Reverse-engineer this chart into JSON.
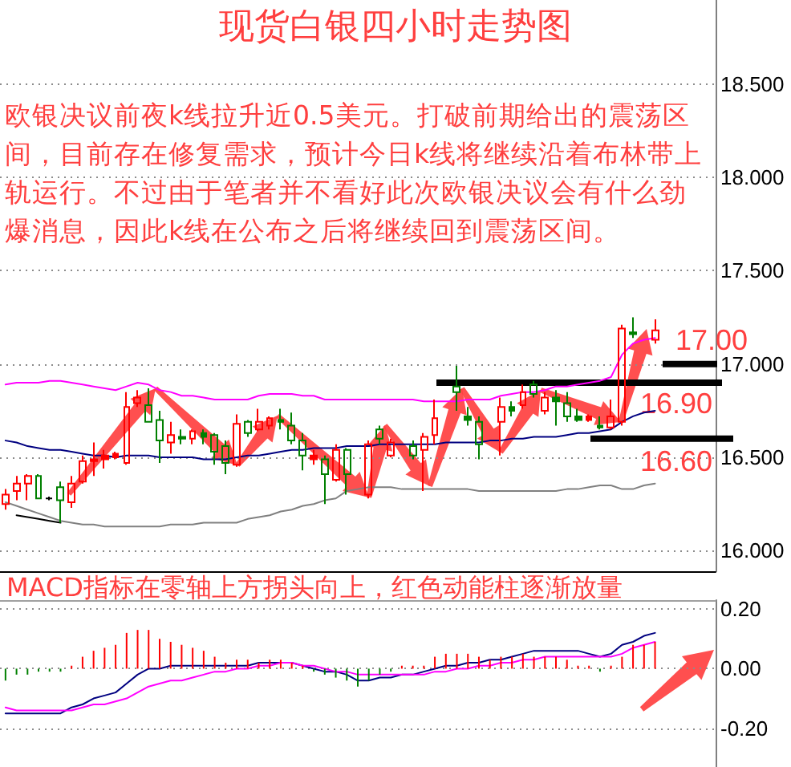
{
  "chart_data": [
    {
      "type": "candlestick",
      "title": "现货白银四小时走势图",
      "annotations": [
        "欧银决议前夜k线拉升近0.5美元。打破前期给出的震荡区间，目前存在修复需求，预计今日k线将继续沿着布林带上轨运行。不过由于笔者并不看好此次欧银决议会有什么劲爆消息，因此k线在公布之后将继续回到震荡区间。"
      ],
      "categories": [
        null,
        null,
        null,
        null,
        null,
        null,
        null,
        null,
        null,
        null,
        null,
        null,
        null,
        null,
        null,
        null,
        null,
        null,
        null,
        null,
        null,
        null,
        null,
        null,
        null,
        null,
        null,
        null,
        null,
        null,
        null,
        null,
        null,
        null,
        null,
        null,
        null,
        null,
        null,
        null,
        null,
        null,
        null,
        null,
        null,
        null,
        null,
        null,
        null,
        null,
        null,
        null,
        null,
        null,
        null,
        null,
        null,
        null,
        null,
        null
      ],
      "ohlc": [
        [
          16.25,
          16.33,
          16.22,
          16.3
        ],
        [
          16.32,
          16.4,
          16.27,
          16.36
        ],
        [
          16.36,
          16.41,
          16.27,
          16.4
        ],
        [
          16.4,
          16.41,
          16.28,
          16.28
        ],
        [
          16.28,
          16.29,
          16.27,
          16.28
        ],
        [
          16.34,
          16.37,
          16.15,
          16.27
        ],
        [
          16.26,
          16.4,
          16.23,
          16.36
        ],
        [
          16.37,
          16.51,
          16.36,
          16.48
        ],
        [
          16.48,
          16.58,
          16.4,
          16.49
        ],
        [
          16.49,
          16.54,
          16.44,
          16.51
        ],
        [
          16.5,
          16.53,
          16.49,
          16.52
        ],
        [
          16.47,
          16.85,
          16.46,
          16.77
        ],
        [
          16.79,
          16.86,
          16.77,
          16.82
        ],
        [
          16.78,
          16.87,
          16.69,
          16.69
        ],
        [
          16.7,
          16.75,
          16.47,
          16.59
        ],
        [
          16.58,
          16.69,
          16.52,
          16.62
        ],
        [
          16.61,
          16.65,
          16.57,
          16.6
        ],
        [
          16.6,
          16.65,
          16.57,
          16.64
        ],
        [
          16.63,
          16.65,
          16.57,
          16.61
        ],
        [
          16.62,
          16.63,
          16.46,
          16.53
        ],
        [
          16.56,
          16.59,
          16.41,
          16.47
        ],
        [
          16.46,
          16.73,
          16.45,
          16.68
        ],
        [
          16.69,
          16.7,
          16.61,
          16.63
        ],
        [
          16.65,
          16.76,
          16.64,
          16.69
        ],
        [
          16.67,
          16.72,
          16.65,
          16.71
        ],
        [
          16.7,
          16.76,
          16.65,
          16.69
        ],
        [
          16.67,
          16.74,
          16.57,
          16.59
        ],
        [
          16.59,
          16.63,
          16.43,
          16.51
        ],
        [
          16.49,
          16.54,
          16.46,
          16.51
        ],
        [
          16.49,
          16.51,
          16.25,
          16.41
        ],
        [
          16.38,
          16.57,
          16.37,
          16.54
        ],
        [
          16.54,
          16.55,
          16.3,
          16.41
        ],
        null,
        [
          16.3,
          16.59,
          16.28,
          16.57
        ],
        [
          16.65,
          16.67,
          16.57,
          16.6
        ],
        [
          16.51,
          16.6,
          16.5,
          16.58
        ],
        null,
        [
          16.56,
          16.59,
          16.49,
          16.51
        ],
        [
          16.54,
          16.63,
          16.32,
          16.61
        ],
        [
          16.62,
          16.81,
          16.57,
          16.71
        ],
        null,
        [
          16.88,
          16.99,
          16.75,
          16.85
        ],
        [
          16.72,
          16.77,
          16.67,
          16.7
        ],
        [
          16.69,
          16.72,
          16.49,
          16.57
        ],
        null,
        [
          16.69,
          16.82,
          16.51,
          16.77
        ],
        [
          16.77,
          16.8,
          16.72,
          16.75
        ],
        [
          16.78,
          16.89,
          16.76,
          16.85
        ],
        [
          16.89,
          16.91,
          16.82,
          16.84
        ],
        [
          16.75,
          16.85,
          16.73,
          16.82
        ],
        [
          16.82,
          16.86,
          16.67,
          16.8
        ],
        [
          16.79,
          16.85,
          16.69,
          16.72
        ],
        [
          16.72,
          16.76,
          16.69,
          16.7
        ],
        [
          16.7,
          16.73,
          16.69,
          16.72
        ],
        [
          16.67,
          16.72,
          16.65,
          16.66
        ],
        [
          16.66,
          16.81,
          16.65,
          16.72
        ],
        [
          16.69,
          17.21,
          16.67,
          17.19
        ],
        [
          17.17,
          17.25,
          17.14,
          17.16
        ],
        null,
        [
          17.13,
          17.24,
          17.11,
          17.18
        ]
      ],
      "colors": [
        "#ff0000",
        "#ff0000",
        "#ff0000",
        "#008000",
        "#000000",
        "#008000",
        "#ff0000",
        "#ff0000",
        "#ff0000",
        "#ff0000",
        "#ff0000",
        "#ff0000",
        "#ff0000",
        "#008000",
        "#008000",
        "#ff0000",
        "#008000",
        "#ff0000",
        "#008000",
        "#008000",
        "#008000",
        "#ff0000",
        "#008000",
        "#ff0000",
        "#ff0000",
        "#008000",
        "#008000",
        "#008000",
        "#ff0000",
        "#008000",
        "#ff0000",
        "#008000",
        null,
        "#ff0000",
        "#008000",
        "#ff0000",
        null,
        "#008000",
        "#ff0000",
        "#ff0000",
        null,
        "#008000",
        "#008000",
        "#008000",
        null,
        "#ff0000",
        "#008000",
        "#ff0000",
        "#008000",
        "#ff0000",
        "#008000",
        "#008000",
        "#008000",
        "#ff0000",
        "#008000",
        "#ff0000",
        "#ff0000",
        "#008000",
        null,
        "#ff0000"
      ],
      "series": [
        {
          "type": "line",
          "color": "#ff00ff",
          "values": [
            16.89,
            16.9,
            16.9,
            16.9,
            16.91,
            16.91,
            16.9,
            16.89,
            16.88,
            16.87,
            16.86,
            16.88,
            16.9,
            16.89,
            16.86,
            16.85,
            16.83,
            16.83,
            16.82,
            16.81,
            16.81,
            16.81,
            16.81,
            16.83,
            16.84,
            16.84,
            16.84,
            16.83,
            16.83,
            16.81,
            16.81,
            16.81,
            16.81,
            16.81,
            16.81,
            16.81,
            16.81,
            16.81,
            16.8,
            16.8,
            16.8,
            16.8,
            16.81,
            16.81,
            16.81,
            16.83,
            16.84,
            16.85,
            16.85,
            16.86,
            16.88,
            16.88,
            16.89,
            16.9,
            16.91,
            16.93,
            17.05,
            17.11,
            17.13,
            17.14
          ]
        },
        {
          "type": "line",
          "color": "#000080",
          "values": [
            16.59,
            16.58,
            16.56,
            16.55,
            16.54,
            16.54,
            16.53,
            16.52,
            16.51,
            16.51,
            16.5,
            16.51,
            16.51,
            16.51,
            16.5,
            16.5,
            16.5,
            16.5,
            16.49,
            16.49,
            16.49,
            16.5,
            16.51,
            16.51,
            16.52,
            16.53,
            16.54,
            16.54,
            16.55,
            16.55,
            16.55,
            16.56,
            16.56,
            16.56,
            16.57,
            16.57,
            16.57,
            16.57,
            16.57,
            16.57,
            16.58,
            16.58,
            16.58,
            16.58,
            16.59,
            16.59,
            16.6,
            16.6,
            16.61,
            16.61,
            16.61,
            16.62,
            16.63,
            16.63,
            16.64,
            16.65,
            16.69,
            16.72,
            16.74,
            16.75
          ]
        },
        {
          "type": "line",
          "color": "#808080",
          "values": [
            16.26,
            16.24,
            16.22,
            16.2,
            16.18,
            16.16,
            16.15,
            16.14,
            16.14,
            16.13,
            16.13,
            16.13,
            16.13,
            16.13,
            16.13,
            16.14,
            16.14,
            16.14,
            16.15,
            16.15,
            16.15,
            16.15,
            16.17,
            16.18,
            16.19,
            16.21,
            16.22,
            16.24,
            16.25,
            16.27,
            16.28,
            16.32,
            16.33,
            16.34,
            16.34,
            16.34,
            16.33,
            16.33,
            16.33,
            16.33,
            16.33,
            16.33,
            16.33,
            16.32,
            16.32,
            16.32,
            16.32,
            16.32,
            16.32,
            16.32,
            16.32,
            16.33,
            16.33,
            16.34,
            16.35,
            16.35,
            16.33,
            16.33,
            16.35,
            16.36
          ]
        },
        {
          "type": "line",
          "color": "#000000",
          "values": [
            null,
            16.19,
            16.18,
            16.17,
            16.16,
            16.15,
            null,
            null,
            null,
            null,
            null,
            null,
            null,
            null,
            null,
            null,
            null,
            null,
            null,
            null,
            null,
            null,
            null,
            null,
            null,
            null,
            null,
            null,
            null,
            null,
            null,
            null,
            null,
            null,
            null,
            null,
            null,
            null,
            null,
            null,
            null,
            null,
            null,
            null,
            null,
            null,
            null,
            null,
            null,
            null,
            null,
            null,
            null,
            null,
            null,
            null,
            null,
            null,
            null,
            null
          ]
        }
      ],
      "ylim": [
        15.89,
        18.95
      ],
      "yticks": [
        {
          "value": 16,
          "label": "16.000"
        },
        {
          "value": 16.5,
          "label": "16.500"
        },
        {
          "value": 17,
          "label": "17.000"
        },
        {
          "value": 17.5,
          "label": "17.500"
        },
        {
          "value": 18,
          "label": "18.000"
        },
        {
          "value": 18.5,
          "label": "18.500"
        }
      ],
      "ref_lines": [
        {
          "axis": "y",
          "value": 17.0,
          "label": "17.00",
          "color": "#000000"
        },
        {
          "axis": "y",
          "value": 16.9,
          "label": "16.90",
          "color": "#000000"
        },
        {
          "axis": "y",
          "value": 16.6,
          "label": "16.60",
          "color": "#000000"
        }
      ],
      "grid": "y",
      "tick_labels": "y",
      "marker": "none"
    },
    {
      "type": "bar",
      "title": "MACD指标在零轴上方拐头向上，红色动能柱逐渐放量",
      "categories": [
        null,
        null,
        null,
        null,
        null,
        null,
        null,
        null,
        null,
        null,
        null,
        null,
        null,
        null,
        null,
        null,
        null,
        null,
        null,
        null,
        null,
        null,
        null,
        null,
        null,
        null,
        null,
        null,
        null,
        null,
        null,
        null,
        null,
        null,
        null,
        null,
        null,
        null,
        null,
        null,
        null,
        null,
        null,
        null,
        null,
        null,
        null,
        null,
        null,
        null,
        null,
        null,
        null,
        null,
        null,
        null,
        null,
        null,
        null,
        null
      ],
      "series": [
        {
          "colors": [
            "#008000",
            "#008000",
            "#008000",
            "#008000",
            "#008000",
            "#008000",
            "#ff0000",
            "#ff0000",
            "#ff0000",
            "#ff0000",
            "#ff0000",
            "#ff0000",
            "#ff0000",
            "#ff0000",
            "#ff0000",
            "#ff0000",
            "#ff0000",
            "#ff0000",
            "#ff0000",
            "#ff0000",
            "#ff0000",
            "#ff0000",
            "#ff0000",
            "#ff0000",
            "#ff0000",
            "#ff0000",
            "#ff0000",
            "#ff0000",
            "#008000",
            "#008000",
            "#008000",
            "#008000",
            "#008000",
            "#008000",
            "#008000",
            "#008000",
            "#ff0000",
            "#ff0000",
            "#ff0000",
            "#ff0000",
            "#ff0000",
            "#ff0000",
            "#ff0000",
            "#ff0000",
            "#ff0000",
            "#ff0000",
            "#ff0000",
            "#ff0000",
            "#ff0000",
            "#ff0000",
            "#ff0000",
            "#ff0000",
            "#ff0000",
            "#ff0000",
            "#008000",
            "#ff0000",
            "#ff0000",
            "#ff0000",
            "#ff0000",
            "#ff0000"
          ],
          "values": [
            -0.04,
            -0.02,
            -0.02,
            -0.01,
            -0.01,
            -0.01,
            0.01,
            0.04,
            0.06,
            0.07,
            0.08,
            0.12,
            0.13,
            0.13,
            0.1,
            0.09,
            0.08,
            0.07,
            0.06,
            0.04,
            0.02,
            0.03,
            0.03,
            0.02,
            0.03,
            0.03,
            0.02,
            0.01,
            -0.01,
            -0.02,
            -0.03,
            -0.04,
            -0.06,
            -0.04,
            -0.02,
            -0.01,
            0.01,
            0.01,
            0.01,
            0.04,
            0.05,
            0.05,
            0.05,
            0.04,
            0.03,
            0.04,
            0.04,
            0.05,
            0.04,
            0.04,
            0.04,
            0.03,
            0.01,
            0.01,
            -0.01,
            0.01,
            0.04,
            0.08,
            0.08,
            0.09
          ]
        },
        {
          "type": "line",
          "color": "#000080",
          "values": [
            -0.15,
            -0.15,
            -0.15,
            -0.15,
            -0.15,
            -0.15,
            -0.13,
            -0.12,
            -0.1,
            -0.09,
            -0.08,
            -0.05,
            -0.02,
            0.0,
            0.0,
            0.01,
            0.01,
            0.01,
            0.01,
            0.01,
            0.01,
            0.01,
            0.01,
            0.02,
            0.02,
            0.02,
            0.02,
            0.01,
            0.0,
            -0.01,
            -0.01,
            -0.02,
            -0.04,
            -0.04,
            -0.03,
            -0.03,
            -0.02,
            -0.02,
            -0.01,
            0.0,
            0.01,
            0.01,
            0.02,
            0.02,
            0.03,
            0.03,
            0.04,
            0.05,
            0.06,
            0.06,
            0.06,
            0.06,
            0.06,
            0.05,
            0.04,
            0.05,
            0.08,
            0.09,
            0.11,
            0.12
          ]
        },
        {
          "type": "line",
          "color": "#ff00ff",
          "values": [
            -0.13,
            -0.14,
            -0.14,
            -0.14,
            -0.14,
            -0.14,
            -0.14,
            -0.13,
            -0.12,
            -0.12,
            -0.11,
            -0.1,
            -0.08,
            -0.06,
            -0.05,
            -0.04,
            -0.04,
            -0.03,
            -0.02,
            -0.01,
            -0.01,
            0.0,
            0.0,
            0.01,
            0.01,
            0.02,
            0.02,
            0.01,
            0.01,
            0.0,
            -0.01,
            -0.01,
            -0.02,
            -0.02,
            -0.02,
            -0.02,
            -0.02,
            -0.02,
            -0.02,
            -0.01,
            -0.01,
            0.0,
            0.0,
            0.01,
            0.01,
            0.02,
            0.02,
            0.03,
            0.03,
            0.04,
            0.04,
            0.04,
            0.04,
            0.04,
            0.04,
            0.04,
            0.05,
            0.07,
            0.08,
            0.09
          ]
        }
      ],
      "ylim": [
        -0.33,
        0.23
      ],
      "yticks": [
        {
          "value": -0.2,
          "label": "-0.20"
        },
        {
          "value": 0,
          "label": "0.00"
        },
        {
          "value": 0.2,
          "label": "0.20"
        }
      ],
      "grid": "y",
      "tick_labels": "y",
      "marker": "none"
    }
  ]
}
